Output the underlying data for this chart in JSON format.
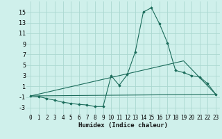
{
  "title": "",
  "xlabel": "Humidex (Indice chaleur)",
  "ylabel": "",
  "background_color": "#cff0eb",
  "grid_color": "#aad8d0",
  "line_color": "#1a6b5a",
  "xlim": [
    -0.5,
    23.5
  ],
  "ylim": [
    -4.2,
    17.0
  ],
  "yticks": [
    -3,
    -1,
    1,
    3,
    5,
    7,
    9,
    11,
    13,
    15
  ],
  "xticks": [
    0,
    1,
    2,
    3,
    4,
    5,
    6,
    7,
    8,
    9,
    10,
    11,
    12,
    13,
    14,
    15,
    16,
    17,
    18,
    19,
    20,
    21,
    22,
    23
  ],
  "xtick_labels": [
    "0",
    "1",
    "2",
    "3",
    "4",
    "5",
    "6",
    "7",
    "8",
    "9",
    "10",
    "11",
    "12",
    "13",
    "14",
    "15",
    "16",
    "17",
    "18",
    "19",
    "20",
    "21",
    "22",
    "23"
  ],
  "series_main": {
    "x": [
      0,
      1,
      2,
      3,
      4,
      5,
      6,
      7,
      8,
      9,
      10,
      11,
      12,
      13,
      14,
      15,
      16,
      17,
      18,
      19,
      20,
      21,
      22,
      23
    ],
    "y": [
      -0.8,
      -0.9,
      -1.3,
      -1.6,
      -2.0,
      -2.2,
      -2.4,
      -2.5,
      -2.8,
      -2.8,
      3.0,
      1.2,
      3.2,
      7.5,
      15.0,
      15.8,
      12.8,
      9.2,
      4.0,
      3.6,
      3.0,
      2.8,
      1.5,
      -0.5
    ]
  },
  "series_flat": {
    "x": [
      0,
      23
    ],
    "y": [
      -0.8,
      -0.5
    ]
  },
  "series_tri": {
    "x": [
      0,
      19,
      23
    ],
    "y": [
      -0.8,
      5.8,
      -0.5
    ]
  },
  "marker_style": "D",
  "marker_size": 1.8,
  "line_width": 0.8,
  "tick_fontsize": 5.5,
  "xlabel_fontsize": 6.5
}
